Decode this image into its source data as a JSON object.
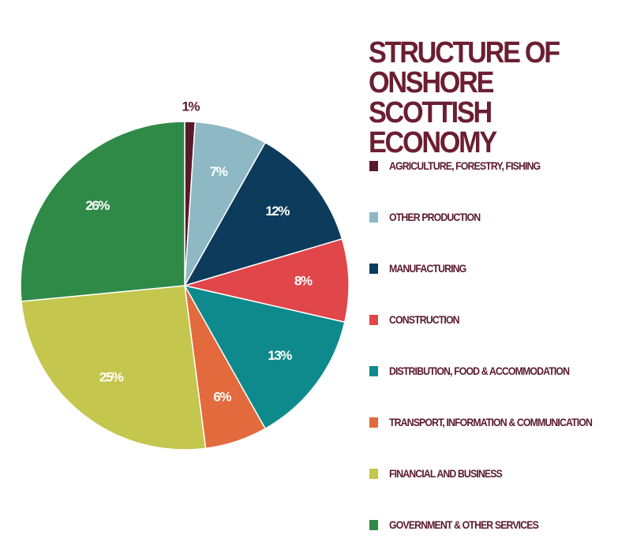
{
  "chart_data": {
    "type": "pie",
    "title": "STRUCTURE OF ONSHORE SCOTTISH ECONOMY",
    "categories": [
      "AGRICULTURE, FORESTRY, FISHING",
      "OTHER PRODUCTION",
      "MANUFACTURING",
      "CONSTRUCTION",
      "DISTRIBUTION, FOOD & ACCOMMODATION",
      "TRANSPORT, INFORMATION & COMMUNICATION",
      "FINANCIAL AND BUSINESS",
      "GOVERNMENT & OTHER SERVICES"
    ],
    "values": [
      1,
      7,
      12,
      8,
      13,
      6,
      25,
      26
    ],
    "data_labels": [
      "1%",
      "7%",
      "12%",
      "8%",
      "13%",
      "6%",
      "25%",
      "26%"
    ],
    "colors": [
      "#5a1a2c",
      "#8db8c4",
      "#0c3b5c",
      "#e0464a",
      "#0e8a8c",
      "#e36a3c",
      "#c4c64e",
      "#2f8a48"
    ],
    "legend_position": "right"
  },
  "title_color": "#6b1e32",
  "legend_text_color": "#5a1a2c"
}
